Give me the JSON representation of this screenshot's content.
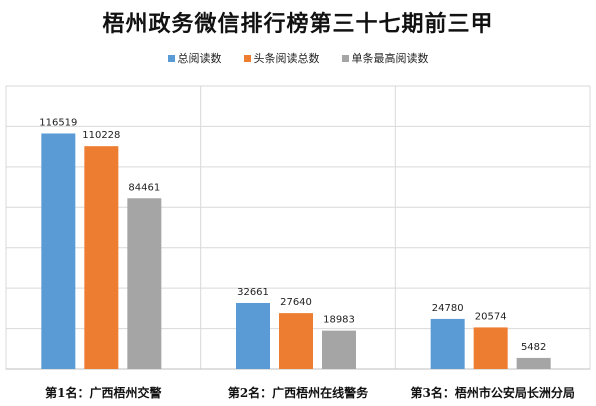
{
  "chart_data": {
    "type": "bar",
    "title": "梧州政务微信排行榜第三十七期前三甲",
    "categories": [
      "第1名：广西梧州交警",
      "第2名：广西梧州在线警务",
      "第3名：梧州市公安局长洲分局"
    ],
    "series": [
      {
        "name": "总阅读数",
        "color": "#5b9bd5",
        "values": [
          116519,
          32661,
          24780
        ]
      },
      {
        "name": "头条阅读总数",
        "color": "#ed7d31",
        "values": [
          110228,
          27640,
          20574
        ]
      },
      {
        "name": "单条最高阅读数",
        "color": "#a5a5a5",
        "values": [
          84461,
          18983,
          5482
        ]
      }
    ],
    "ylim": [
      0,
      140000
    ],
    "grid": true,
    "legend_position": "top"
  }
}
